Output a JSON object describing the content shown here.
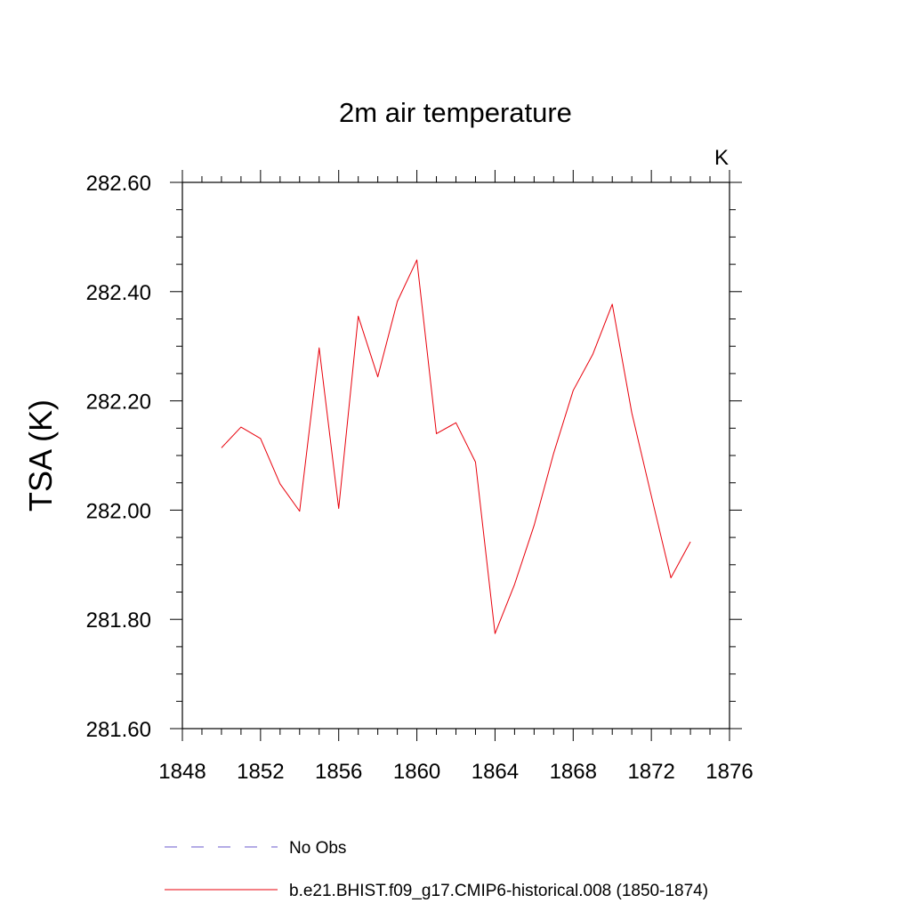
{
  "chart_data": {
    "type": "line",
    "title": "2m air temperature",
    "units_label": "K",
    "xlabel": "",
    "ylabel": "TSA  (K)",
    "xlim": [
      1848,
      1876
    ],
    "ylim": [
      281.6,
      282.6
    ],
    "x_ticks": [
      1848,
      1852,
      1856,
      1860,
      1864,
      1868,
      1872,
      1876
    ],
    "x_tick_labels": [
      "1848",
      "1852",
      "1856",
      "1860",
      "1864",
      "1868",
      "1872",
      "1876"
    ],
    "y_ticks": [
      281.6,
      281.8,
      282.0,
      282.2,
      282.4,
      282.6
    ],
    "y_tick_labels": [
      "281.60",
      "281.80",
      "282.00",
      "282.20",
      "282.40",
      "282.60"
    ],
    "x_minor_step": 1,
    "y_minor_step": 0.05,
    "series": [
      {
        "name": "b.e21.BHIST.f09_g17.CMIP6-historical.008 (1850-1874)",
        "color": "#e8000b",
        "dash": "solid",
        "x": [
          1850,
          1851,
          1852,
          1853,
          1854,
          1855,
          1856,
          1857,
          1858,
          1859,
          1860,
          1861,
          1862,
          1863,
          1864,
          1865,
          1866,
          1867,
          1868,
          1869,
          1870,
          1871,
          1872,
          1873,
          1874
        ],
        "values": [
          282.114,
          282.152,
          282.131,
          282.048,
          281.998,
          282.297,
          282.003,
          282.355,
          282.244,
          282.382,
          282.458,
          282.14,
          282.16,
          282.088,
          281.774,
          281.864,
          281.972,
          282.104,
          282.219,
          282.285,
          282.377,
          282.178,
          282.026,
          281.876,
          281.942
        ]
      }
    ],
    "legend": [
      {
        "label": "No Obs",
        "color": "#6a5acd",
        "dash": "dashed"
      },
      {
        "label": "b.e21.BHIST.f09_g17.CMIP6-historical.008 (1850-1874)",
        "color": "#e8000b",
        "dash": "solid"
      }
    ],
    "legend_position": "bottom"
  }
}
